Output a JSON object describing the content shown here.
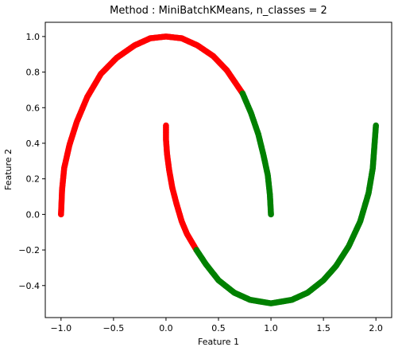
{
  "chart_data": {
    "type": "scatter",
    "title": "Method : MiniBatchKMeans, n_classes = 2",
    "xlabel": "Feature 1",
    "ylabel": "Feature 2",
    "xlim": [
      -1.15,
      2.15
    ],
    "ylim": [
      -0.58,
      1.08
    ],
    "grid": false,
    "legend": "none",
    "xticks": [
      -1.0,
      -0.5,
      0.0,
      0.5,
      1.0,
      1.5,
      2.0
    ],
    "xtick_labels": [
      "−1.0",
      "−0.5",
      "0.0",
      "0.5",
      "1.0",
      "1.5",
      "2.0"
    ],
    "yticks": [
      -0.4,
      -0.2,
      0.0,
      0.2,
      0.4,
      0.6,
      0.8,
      1.0
    ],
    "ytick_labels": [
      "−0.4",
      "−0.2",
      "0.0",
      "0.2",
      "0.4",
      "0.6",
      "0.8",
      "1.0"
    ],
    "series": [
      {
        "color": "#ff0000",
        "points": [
          [
            -1.0,
            0.0
          ],
          [
            -0.99,
            0.14
          ],
          [
            -0.97,
            0.26
          ],
          [
            -0.92,
            0.39
          ],
          [
            -0.85,
            0.52
          ],
          [
            -0.75,
            0.66
          ],
          [
            -0.62,
            0.79
          ],
          [
            -0.47,
            0.88
          ],
          [
            -0.3,
            0.95
          ],
          [
            -0.15,
            0.99
          ],
          [
            0.0,
            1.0
          ],
          [
            0.15,
            0.99
          ],
          [
            0.3,
            0.95
          ],
          [
            0.45,
            0.89
          ],
          [
            0.58,
            0.81
          ],
          [
            0.73,
            0.68
          ],
          [
            0.0,
            0.5
          ],
          [
            0.0,
            0.42
          ],
          [
            0.01,
            0.34
          ],
          [
            0.03,
            0.25
          ],
          [
            0.06,
            0.15
          ],
          [
            0.1,
            0.06
          ],
          [
            0.15,
            -0.04
          ],
          [
            0.2,
            -0.11
          ],
          [
            0.25,
            -0.16
          ],
          [
            0.29,
            -0.2
          ]
        ]
      },
      {
        "color": "#008000",
        "points": [
          [
            0.73,
            0.68
          ],
          [
            0.81,
            0.57
          ],
          [
            0.88,
            0.45
          ],
          [
            0.93,
            0.33
          ],
          [
            0.97,
            0.22
          ],
          [
            0.99,
            0.11
          ],
          [
            1.0,
            0.0
          ],
          [
            0.29,
            -0.2
          ],
          [
            0.38,
            -0.28
          ],
          [
            0.5,
            -0.37
          ],
          [
            0.65,
            -0.44
          ],
          [
            0.8,
            -0.48
          ],
          [
            1.0,
            -0.5
          ],
          [
            1.2,
            -0.48
          ],
          [
            1.35,
            -0.44
          ],
          [
            1.5,
            -0.37
          ],
          [
            1.62,
            -0.29
          ],
          [
            1.74,
            -0.18
          ],
          [
            1.85,
            -0.04
          ],
          [
            1.93,
            0.12
          ],
          [
            1.97,
            0.26
          ],
          [
            2.0,
            0.5
          ]
        ]
      }
    ]
  }
}
